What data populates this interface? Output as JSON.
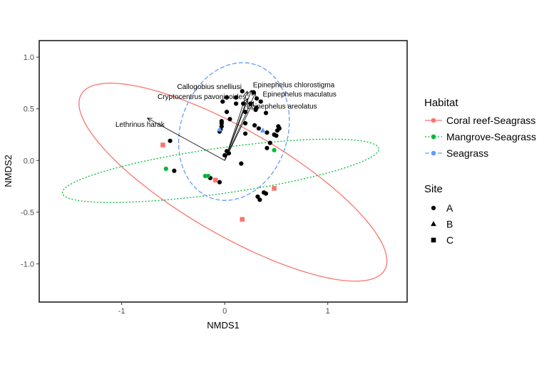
{
  "chart_data": {
    "type": "scatter",
    "xlabel": "NMDS1",
    "ylabel": "NMDS2",
    "xlim": [
      -1.8,
      1.77
    ],
    "ylim": [
      -1.37,
      1.16
    ],
    "x_ticks": [
      -1,
      0,
      1
    ],
    "x_tick_labels": [
      "-1",
      "0",
      "1"
    ],
    "y_ticks": [
      -1.0,
      -0.5,
      0.0,
      0.5,
      1.0
    ],
    "y_tick_labels": [
      "-1.0",
      "-0.5",
      "0.0",
      "0.5",
      "1.0"
    ],
    "grid": false,
    "colors": {
      "coral": "#f8766d",
      "mangrove": "#00ba38",
      "seagrass": "#619cff",
      "site_points": "#000000"
    },
    "legends": [
      {
        "title": "Habitat",
        "placement": "right",
        "entries": [
          {
            "label": "Coral reef-Seagrass",
            "color": "#f8766d",
            "line": "solid"
          },
          {
            "label": "Mangrove-Seagrass",
            "color": "#00ba38",
            "line": "dotted"
          },
          {
            "label": "Seagrass",
            "color": "#619cff",
            "line": "dashed"
          }
        ]
      },
      {
        "title": "Site",
        "placement": "right",
        "entries": [
          {
            "label": "A",
            "shape": "circle"
          },
          {
            "label": "B",
            "shape": "triangle"
          },
          {
            "label": "C",
            "shape": "square"
          }
        ]
      }
    ],
    "ellipses": [
      {
        "habitat": "Coral reef-Seagrass",
        "cx": 0.08,
        "cy": -0.21,
        "a": 1.7,
        "b": 0.51,
        "angle_deg": -30,
        "color": "#f8766d",
        "line": "solid"
      },
      {
        "habitat": "Mangrove-Seagrass",
        "cx": -0.04,
        "cy": -0.1,
        "a": 1.55,
        "b": 0.22,
        "angle_deg": 8,
        "color": "#00ba38",
        "line": "dotted"
      },
      {
        "habitat": "Seagrass",
        "cx": 0.09,
        "cy": 0.28,
        "a": 0.68,
        "b": 0.52,
        "angle_deg": 72,
        "color": "#619cff",
        "line": "dashed"
      }
    ],
    "species_vectors": {
      "origin": [
        0.0,
        0.0
      ],
      "color": "#000000",
      "items": [
        {
          "name": "Epinephelus chlorostigma",
          "x": 0.26,
          "y": 0.68
        },
        {
          "name": "Epinephelus maculatus",
          "x": 0.3,
          "y": 0.66
        },
        {
          "name": "Callogobius snelliusi",
          "x": 0.22,
          "y": 0.67
        },
        {
          "name": "Cryptocentrus pavoninoides",
          "x": 0.22,
          "y": 0.6
        },
        {
          "name": "Epinephelus areolatus",
          "x": 0.28,
          "y": 0.57
        },
        {
          "name": "Lethrinus harak",
          "x": -0.75,
          "y": 0.41
        }
      ]
    },
    "series": [
      {
        "site": "A",
        "habitat": "Seagrass",
        "shape": "circle",
        "color": "#000000",
        "points": [
          [
            0.02,
            0.61
          ],
          [
            0.11,
            0.61
          ],
          [
            0.17,
            0.67
          ],
          [
            0.28,
            0.66
          ],
          [
            0.31,
            0.6
          ],
          [
            -0.02,
            0.57
          ],
          [
            0.11,
            0.55
          ],
          [
            0.18,
            0.55
          ],
          [
            0.25,
            0.55
          ],
          [
            0.35,
            0.57
          ],
          [
            0.31,
            0.51
          ],
          [
            0.3,
            0.49
          ],
          [
            0.4,
            0.46
          ],
          [
            0.02,
            0.47
          ],
          [
            0.2,
            0.47
          ],
          [
            0.05,
            0.4
          ],
          [
            -0.03,
            0.38
          ],
          [
            -0.03,
            0.36
          ],
          [
            -0.03,
            0.33
          ],
          [
            -0.04,
            0.3
          ],
          [
            -0.05,
            0.28
          ],
          [
            0.2,
            0.36
          ],
          [
            0.29,
            0.34
          ],
          [
            0.33,
            0.31
          ],
          [
            0.41,
            0.27
          ],
          [
            0.48,
            0.25
          ],
          [
            0.52,
            0.33
          ],
          [
            0.53,
            0.31
          ],
          [
            0.51,
            0.29
          ],
          [
            0.5,
            0.24
          ],
          [
            0.44,
            0.17
          ],
          [
            0.41,
            0.12
          ],
          [
            0.2,
            0.26
          ],
          [
            0.02,
            0.09
          ],
          [
            0.04,
            0.07
          ],
          [
            0.0,
            0.05
          ]
        ]
      },
      {
        "site": "A",
        "habitat": "Coral reef-Seagrass",
        "shape": "circle",
        "color": "#000000",
        "points": [
          [
            -0.53,
            0.19
          ],
          [
            -0.49,
            -0.1
          ],
          [
            -0.14,
            -0.17
          ],
          [
            -0.05,
            -0.21
          ],
          [
            0.16,
            -0.03
          ],
          [
            0.4,
            -0.32
          ],
          [
            0.38,
            -0.31
          ],
          [
            0.32,
            -0.35
          ],
          [
            0.34,
            -0.38
          ]
        ]
      },
      {
        "site": "A",
        "habitat": "Mangrove-Seagrass",
        "shape": "circle",
        "color": "#00ba38",
        "points": [
          [
            -0.57,
            -0.08
          ],
          [
            -0.19,
            -0.15
          ],
          [
            -0.16,
            -0.15
          ],
          [
            0.48,
            0.1
          ]
        ]
      },
      {
        "site": "B",
        "habitat": "Seagrass",
        "shape": "triangle",
        "color": "#619cff",
        "points": [
          [
            -0.05,
            0.3
          ],
          [
            0.37,
            0.29
          ]
        ]
      },
      {
        "site": "C",
        "habitat": "Coral reef-Seagrass",
        "shape": "square",
        "color": "#f8766d",
        "points": [
          [
            -0.6,
            0.15
          ],
          [
            -0.09,
            -0.19
          ],
          [
            0.48,
            -0.27
          ],
          [
            0.17,
            -0.57
          ]
        ]
      }
    ]
  }
}
